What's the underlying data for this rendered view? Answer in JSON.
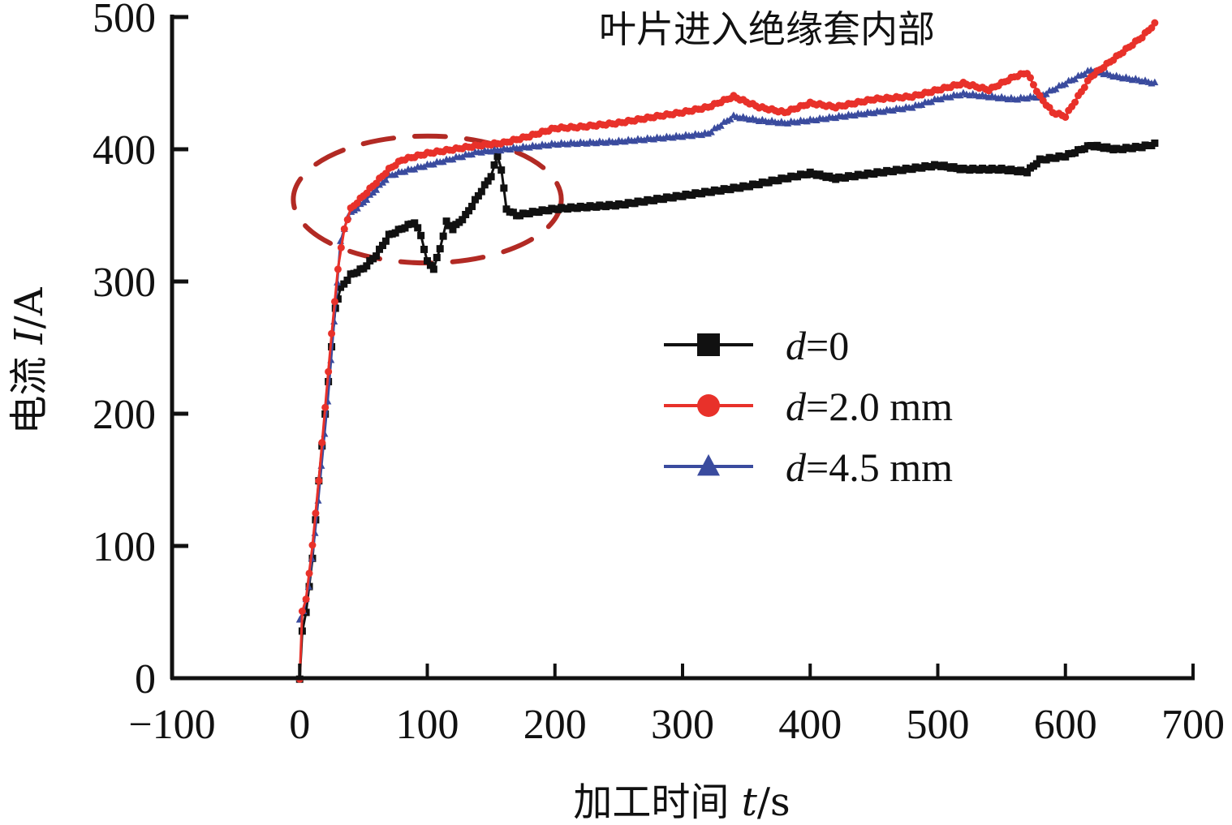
{
  "chart_data": {
    "type": "line",
    "title": "",
    "annotation": "叶片进入绝缘套内部",
    "xlabel": {
      "prefix": "加工时间 ",
      "var": "t",
      "unit": "/s"
    },
    "ylabel": {
      "prefix": "电流 ",
      "var": "I",
      "unit": "/A"
    },
    "xlim": [
      -100,
      700
    ],
    "ylim": [
      0,
      500
    ],
    "xticks": [
      -100,
      0,
      100,
      200,
      300,
      400,
      500,
      600,
      700
    ],
    "xtick_labels": [
      "−100",
      "0",
      "100",
      "200",
      "300",
      "400",
      "500",
      "600",
      "700"
    ],
    "yticks": [
      0,
      100,
      200,
      300,
      400,
      500
    ],
    "ytick_labels": [
      "0",
      "100",
      "200",
      "300",
      "400",
      "500"
    ],
    "grid": false,
    "legend_position": "center-right",
    "highlight_ellipse": {
      "cx": 100,
      "cy": 362,
      "rx": 105,
      "ry": 48,
      "color": "#b22a24"
    },
    "series": [
      {
        "name": "d=0",
        "legend_var": "d",
        "legend_rest": "=0",
        "color": "#111111",
        "marker": "square",
        "points": [
          [
            0,
            0
          ],
          [
            2,
            35
          ],
          [
            5,
            50
          ],
          [
            10,
            90
          ],
          [
            15,
            150
          ],
          [
            20,
            200
          ],
          [
            25,
            250
          ],
          [
            28,
            280
          ],
          [
            32,
            295
          ],
          [
            40,
            305
          ],
          [
            50,
            310
          ],
          [
            60,
            320
          ],
          [
            70,
            335
          ],
          [
            80,
            340
          ],
          [
            90,
            345
          ],
          [
            95,
            335
          ],
          [
            100,
            315
          ],
          [
            105,
            310
          ],
          [
            110,
            325
          ],
          [
            115,
            345
          ],
          [
            120,
            340
          ],
          [
            130,
            350
          ],
          [
            140,
            365
          ],
          [
            150,
            380
          ],
          [
            155,
            395
          ],
          [
            158,
            385
          ],
          [
            162,
            355
          ],
          [
            170,
            350
          ],
          [
            180,
            352
          ],
          [
            200,
            355
          ],
          [
            250,
            358
          ],
          [
            300,
            365
          ],
          [
            350,
            372
          ],
          [
            400,
            382
          ],
          [
            420,
            378
          ],
          [
            450,
            382
          ],
          [
            500,
            388
          ],
          [
            520,
            385
          ],
          [
            550,
            385
          ],
          [
            570,
            383
          ],
          [
            580,
            392
          ],
          [
            600,
            395
          ],
          [
            620,
            403
          ],
          [
            640,
            400
          ],
          [
            660,
            402
          ],
          [
            670,
            404
          ]
        ]
      },
      {
        "name": "d=2.0 mm",
        "legend_var": "d",
        "legend_rest": "=2.0 mm",
        "color": "#e8312a",
        "marker": "circle",
        "points": [
          [
            0,
            0
          ],
          [
            2,
            50
          ],
          [
            5,
            60
          ],
          [
            10,
            100
          ],
          [
            15,
            150
          ],
          [
            20,
            205
          ],
          [
            25,
            260
          ],
          [
            30,
            310
          ],
          [
            35,
            340
          ],
          [
            40,
            355
          ],
          [
            50,
            365
          ],
          [
            60,
            375
          ],
          [
            70,
            385
          ],
          [
            80,
            392
          ],
          [
            100,
            397
          ],
          [
            120,
            400
          ],
          [
            140,
            403
          ],
          [
            160,
            405
          ],
          [
            180,
            410
          ],
          [
            200,
            416
          ],
          [
            220,
            417
          ],
          [
            250,
            420
          ],
          [
            280,
            425
          ],
          [
            300,
            428
          ],
          [
            320,
            432
          ],
          [
            340,
            440
          ],
          [
            360,
            432
          ],
          [
            380,
            428
          ],
          [
            400,
            435
          ],
          [
            420,
            432
          ],
          [
            450,
            438
          ],
          [
            480,
            440
          ],
          [
            500,
            445
          ],
          [
            520,
            450
          ],
          [
            540,
            445
          ],
          [
            560,
            455
          ],
          [
            570,
            458
          ],
          [
            580,
            440
          ],
          [
            590,
            428
          ],
          [
            600,
            425
          ],
          [
            610,
            440
          ],
          [
            620,
            455
          ],
          [
            640,
            470
          ],
          [
            660,
            485
          ],
          [
            670,
            495
          ]
        ]
      },
      {
        "name": "d=4.5 mm",
        "legend_var": "d",
        "legend_rest": "=4.5 mm",
        "color": "#3a4b9e",
        "marker": "triangle",
        "points": [
          [
            0,
            45
          ],
          [
            3,
            50
          ],
          [
            7,
            70
          ],
          [
            12,
            110
          ],
          [
            17,
            160
          ],
          [
            22,
            210
          ],
          [
            27,
            270
          ],
          [
            32,
            330
          ],
          [
            38,
            350
          ],
          [
            50,
            360
          ],
          [
            60,
            370
          ],
          [
            70,
            380
          ],
          [
            80,
            383
          ],
          [
            100,
            388
          ],
          [
            120,
            393
          ],
          [
            140,
            398
          ],
          [
            160,
            400
          ],
          [
            180,
            402
          ],
          [
            200,
            404
          ],
          [
            250,
            406
          ],
          [
            300,
            410
          ],
          [
            320,
            412
          ],
          [
            340,
            425
          ],
          [
            360,
            422
          ],
          [
            380,
            420
          ],
          [
            400,
            422
          ],
          [
            450,
            428
          ],
          [
            480,
            432
          ],
          [
            500,
            438
          ],
          [
            520,
            442
          ],
          [
            540,
            440
          ],
          [
            560,
            438
          ],
          [
            580,
            440
          ],
          [
            600,
            450
          ],
          [
            620,
            460
          ],
          [
            640,
            455
          ],
          [
            660,
            452
          ],
          [
            670,
            450
          ]
        ]
      }
    ]
  }
}
